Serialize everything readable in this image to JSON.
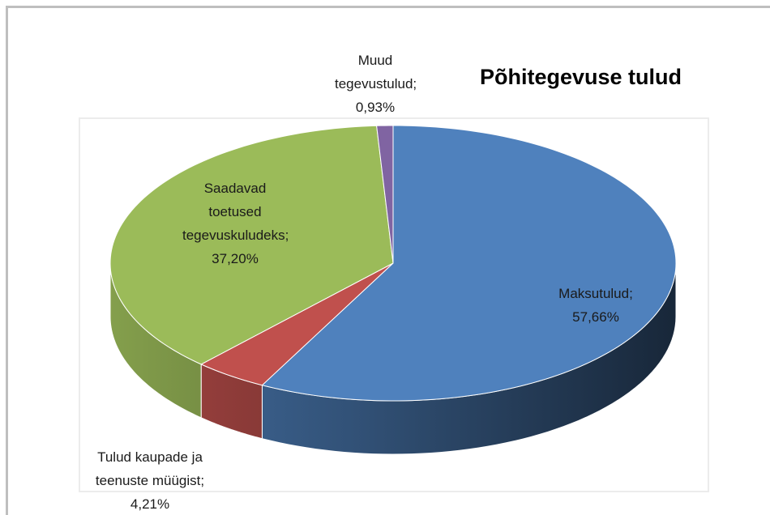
{
  "chart_data": {
    "type": "pie3d",
    "title": "Põhitegevuse tulud",
    "categories": [
      "Maksutulud",
      "Tulud kaupade ja teenuste müügist",
      "Saadavad toetused tegevuskuludeks",
      "Muud tegevustulud"
    ],
    "values": [
      57.66,
      4.21,
      37.2,
      0.93
    ],
    "value_labels": [
      "57,66%",
      "4,21%",
      "37,20%",
      "0,93%"
    ],
    "label_separator": ";",
    "colors": [
      "#4f81bd",
      "#c0504d",
      "#9bbb59",
      "#8064a2"
    ]
  }
}
